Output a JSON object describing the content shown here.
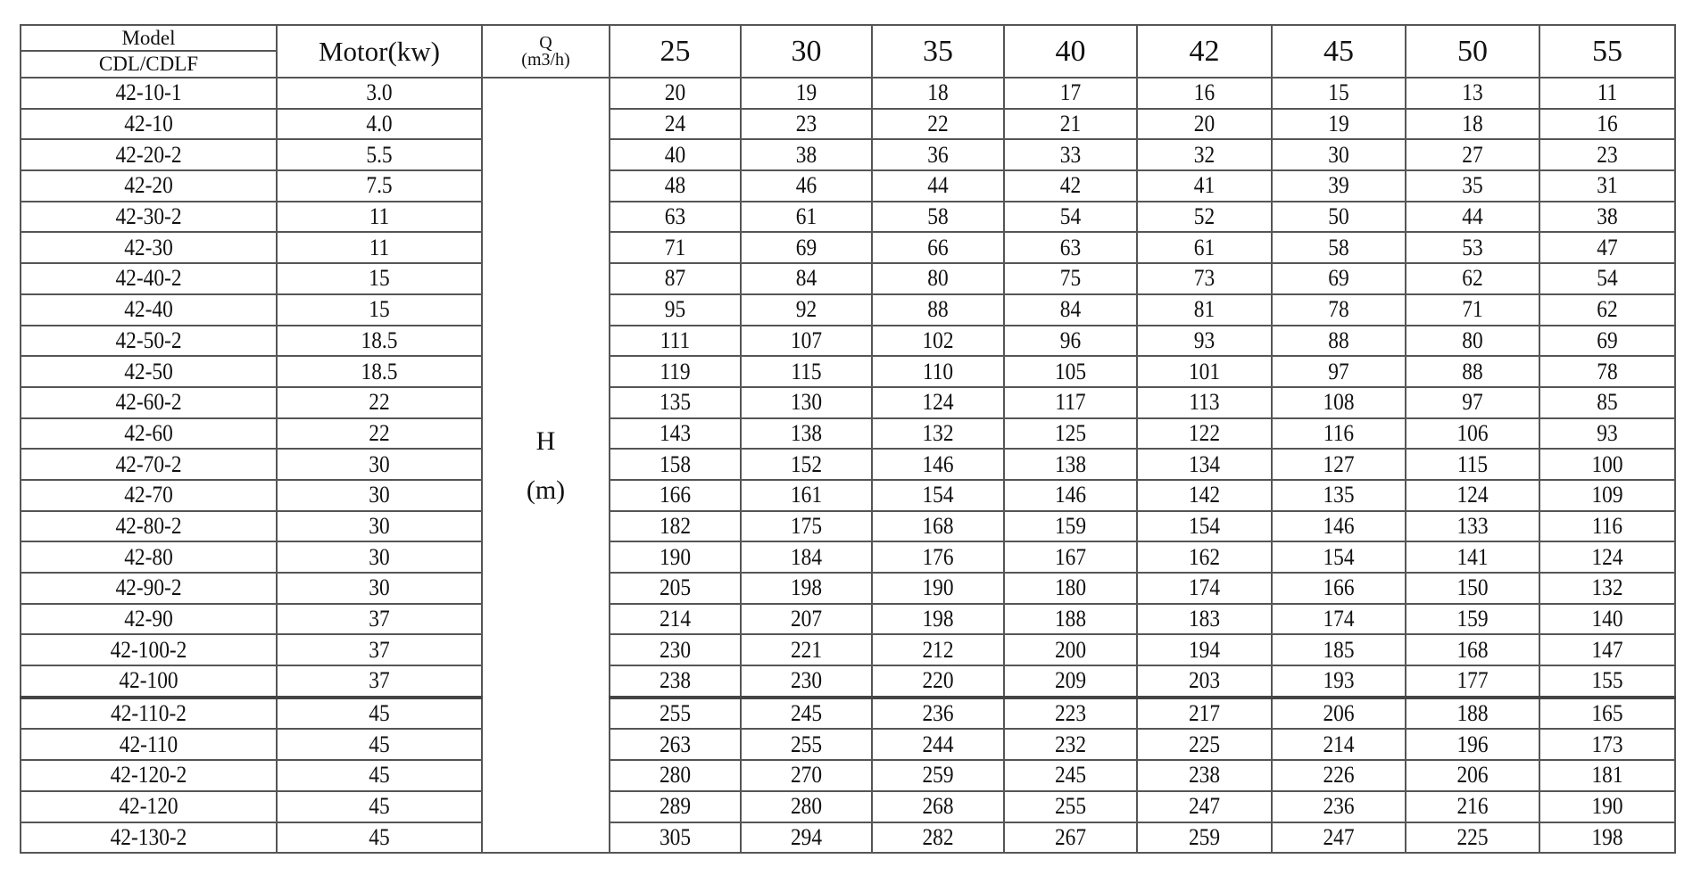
{
  "header": {
    "model_line1": "Model",
    "model_line2": "CDL/CDLF",
    "motor": "Motor(kw)",
    "q_label": "Q",
    "q_unit": "(m3/h)",
    "flows": [
      "25",
      "30",
      "35",
      "40",
      "42",
      "45",
      "50",
      "55"
    ]
  },
  "h_label": "H",
  "h_unit": "(m)",
  "rows": [
    {
      "model": "42-10-1",
      "motor": "3.0",
      "h": [
        "20",
        "19",
        "18",
        "17",
        "16",
        "15",
        "13",
        "11"
      ]
    },
    {
      "model": "42-10",
      "motor": "4.0",
      "h": [
        "24",
        "23",
        "22",
        "21",
        "20",
        "19",
        "18",
        "16"
      ]
    },
    {
      "model": "42-20-2",
      "motor": "5.5",
      "h": [
        "40",
        "38",
        "36",
        "33",
        "32",
        "30",
        "27",
        "23"
      ]
    },
    {
      "model": "42-20",
      "motor": "7.5",
      "h": [
        "48",
        "46",
        "44",
        "42",
        "41",
        "39",
        "35",
        "31"
      ]
    },
    {
      "model": "42-30-2",
      "motor": "11",
      "h": [
        "63",
        "61",
        "58",
        "54",
        "52",
        "50",
        "44",
        "38"
      ]
    },
    {
      "model": "42-30",
      "motor": "11",
      "h": [
        "71",
        "69",
        "66",
        "63",
        "61",
        "58",
        "53",
        "47"
      ]
    },
    {
      "model": "42-40-2",
      "motor": "15",
      "h": [
        "87",
        "84",
        "80",
        "75",
        "73",
        "69",
        "62",
        "54"
      ]
    },
    {
      "model": "42-40",
      "motor": "15",
      "h": [
        "95",
        "92",
        "88",
        "84",
        "81",
        "78",
        "71",
        "62"
      ]
    },
    {
      "model": "42-50-2",
      "motor": "18.5",
      "h": [
        "111",
        "107",
        "102",
        "96",
        "93",
        "88",
        "80",
        "69"
      ]
    },
    {
      "model": "42-50",
      "motor": "18.5",
      "h": [
        "119",
        "115",
        "110",
        "105",
        "101",
        "97",
        "88",
        "78"
      ]
    },
    {
      "model": "42-60-2",
      "motor": "22",
      "h": [
        "135",
        "130",
        "124",
        "117",
        "113",
        "108",
        "97",
        "85"
      ]
    },
    {
      "model": "42-60",
      "motor": "22",
      "h": [
        "143",
        "138",
        "132",
        "125",
        "122",
        "116",
        "106",
        "93"
      ]
    },
    {
      "model": "42-70-2",
      "motor": "30",
      "h": [
        "158",
        "152",
        "146",
        "138",
        "134",
        "127",
        "115",
        "100"
      ]
    },
    {
      "model": "42-70",
      "motor": "30",
      "h": [
        "166",
        "161",
        "154",
        "146",
        "142",
        "135",
        "124",
        "109"
      ]
    },
    {
      "model": "42-80-2",
      "motor": "30",
      "h": [
        "182",
        "175",
        "168",
        "159",
        "154",
        "146",
        "133",
        "116"
      ]
    },
    {
      "model": "42-80",
      "motor": "30",
      "h": [
        "190",
        "184",
        "176",
        "167",
        "162",
        "154",
        "141",
        "124"
      ]
    },
    {
      "model": "42-90-2",
      "motor": "30",
      "h": [
        "205",
        "198",
        "190",
        "180",
        "174",
        "166",
        "150",
        "132"
      ]
    },
    {
      "model": "42-90",
      "motor": "37",
      "h": [
        "214",
        "207",
        "198",
        "188",
        "183",
        "174",
        "159",
        "140"
      ]
    },
    {
      "model": "42-100-2",
      "motor": "37",
      "h": [
        "230",
        "221",
        "212",
        "200",
        "194",
        "185",
        "168",
        "147"
      ]
    },
    {
      "model": "42-100",
      "motor": "37",
      "h": [
        "238",
        "230",
        "220",
        "209",
        "203",
        "193",
        "177",
        "155"
      ]
    },
    {
      "model": "42-110-2",
      "motor": "45",
      "h": [
        "255",
        "245",
        "236",
        "223",
        "217",
        "206",
        "188",
        "165"
      ]
    },
    {
      "model": "42-110",
      "motor": "45",
      "h": [
        "263",
        "255",
        "244",
        "232",
        "225",
        "214",
        "196",
        "173"
      ]
    },
    {
      "model": "42-120-2",
      "motor": "45",
      "h": [
        "280",
        "270",
        "259",
        "245",
        "238",
        "226",
        "206",
        "181"
      ]
    },
    {
      "model": "42-120",
      "motor": "45",
      "h": [
        "289",
        "280",
        "268",
        "255",
        "247",
        "236",
        "216",
        "190"
      ]
    },
    {
      "model": "42-130-2",
      "motor": "45",
      "h": [
        "305",
        "294",
        "282",
        "267",
        "259",
        "247",
        "225",
        "198"
      ]
    }
  ]
}
